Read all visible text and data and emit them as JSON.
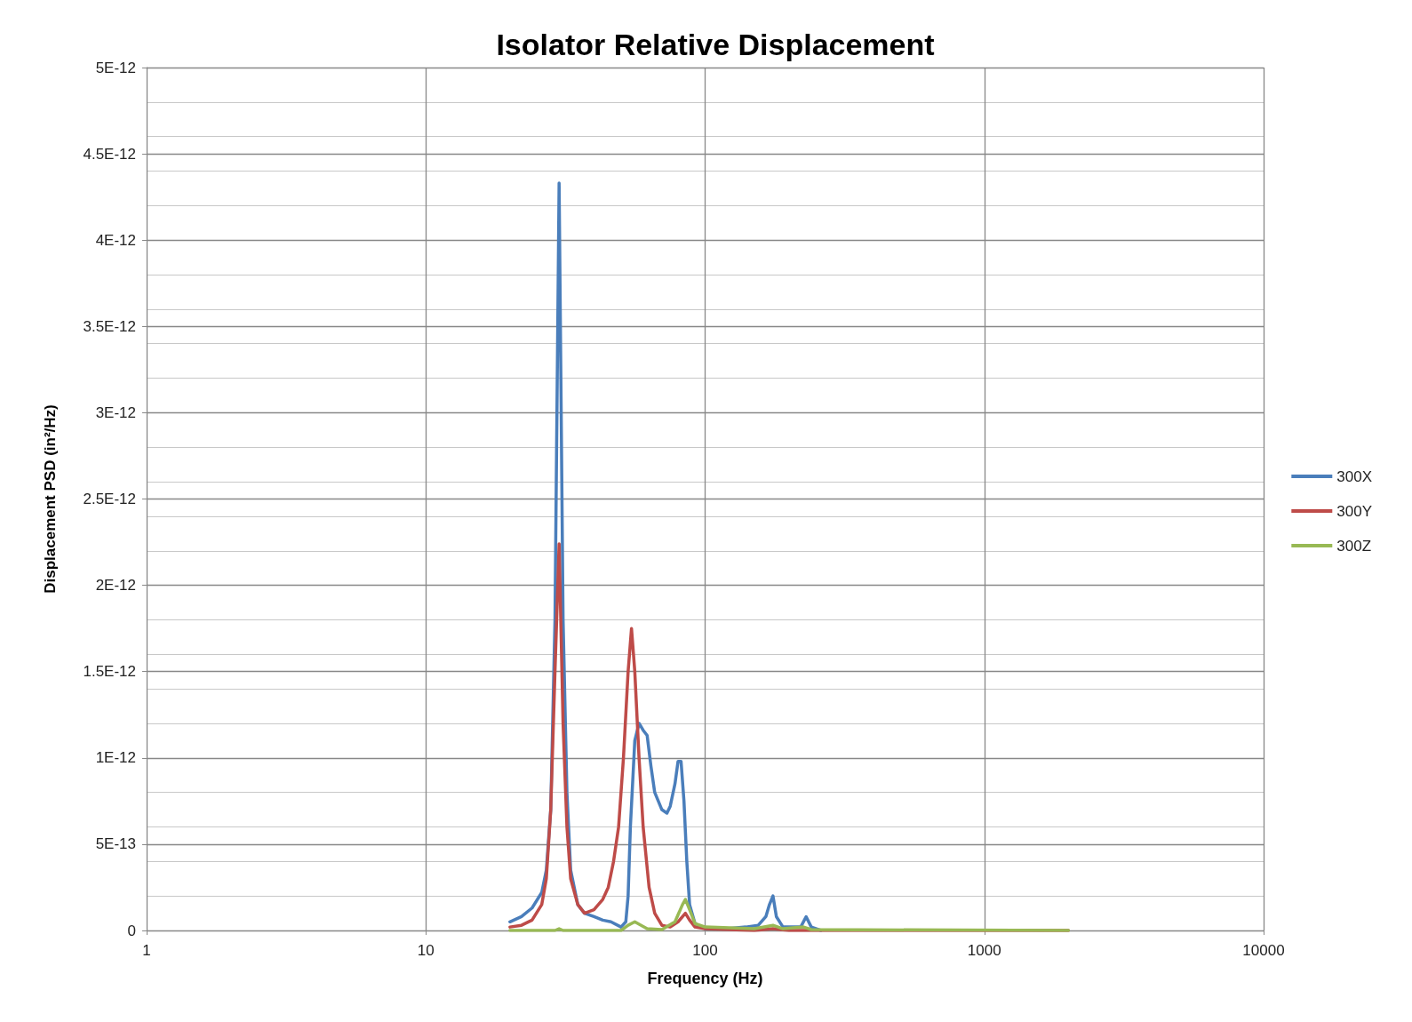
{
  "chart_data": {
    "type": "line",
    "title": "Isolator Relative Displacement",
    "xlabel": "Frequency (Hz)",
    "ylabel": "Displacement PSD (in²/Hz)",
    "log": "x",
    "grid": true,
    "legend": "right",
    "marker": "none",
    "line_style": "solid",
    "xlim": [
      1,
      10000
    ],
    "xticks": [
      1,
      10,
      100,
      1000,
      10000
    ],
    "ylim": [
      0,
      5e-12
    ],
    "yticks": [
      0,
      {
        "value": 5e-13,
        "label": "5E-13"
      },
      {
        "value": 1e-12,
        "label": "1E-12"
      },
      {
        "value": 1.5e-12,
        "label": "1.5E-12"
      },
      {
        "value": 2e-12,
        "label": "2E-12"
      },
      {
        "value": 2.5e-12,
        "label": "2.5E-12"
      },
      {
        "value": 3e-12,
        "label": "3E-12"
      },
      {
        "value": 3.5e-12,
        "label": "3.5E-12"
      },
      {
        "value": 4e-12,
        "label": "4E-12"
      },
      {
        "value": 4.5e-12,
        "label": "4.5E-12"
      },
      {
        "value": 5e-12,
        "label": "5E-12"
      }
    ],
    "series": [
      {
        "name": "300X",
        "color": "#4a7ebb",
        "x": [
          20,
          22,
          24,
          26,
          27,
          28,
          29,
          30,
          31,
          32,
          33,
          35,
          37,
          40,
          43,
          46,
          50,
          52,
          53,
          54,
          56,
          58,
          60,
          62,
          64,
          66,
          70,
          73,
          75,
          78,
          80,
          82,
          84,
          86,
          88,
          92,
          100,
          120,
          140,
          155,
          165,
          170,
          175,
          180,
          190,
          220,
          230,
          240,
          260
        ],
        "values": [
          5e-14,
          8e-14,
          1.3e-13,
          2.2e-13,
          3.5e-13,
          7e-13,
          1.8e-12,
          4.33e-12,
          1.8e-12,
          8e-13,
          3.5e-13,
          1.5e-13,
          1e-13,
          8e-14,
          6e-14,
          5e-14,
          2e-14,
          5e-14,
          2e-13,
          6e-13,
          1.1e-12,
          1.2e-12,
          1.16e-12,
          1.13e-12,
          9.5e-13,
          8e-13,
          7e-13,
          6.8e-13,
          7.2e-13,
          8.5e-13,
          9.8e-13,
          9.8e-13,
          7.5e-13,
          4e-13,
          1.5e-13,
          4e-14,
          1e-14,
          1e-14,
          2e-14,
          3e-14,
          8e-14,
          1.5e-13,
          2e-13,
          8e-14,
          2e-14,
          2e-14,
          8e-14,
          2e-14,
          0
        ]
      },
      {
        "name": "300Y",
        "color": "#be4b48",
        "x": [
          20,
          22,
          24,
          26,
          27,
          28,
          29,
          30,
          31,
          32,
          33,
          35,
          37,
          40,
          43,
          45,
          47,
          49,
          51,
          53,
          54.5,
          56,
          58,
          60,
          63,
          66,
          70,
          75,
          80,
          85,
          88,
          92,
          100,
          150,
          175,
          200,
          2000
        ],
        "values": [
          2e-14,
          3e-14,
          6e-14,
          1.5e-13,
          3e-13,
          7e-13,
          1.5e-12,
          2.24e-12,
          1.2e-12,
          6e-13,
          3e-13,
          1.5e-13,
          1e-13,
          1.2e-13,
          1.8e-13,
          2.5e-13,
          4e-13,
          6e-13,
          1e-12,
          1.5e-12,
          1.75e-12,
          1.5e-12,
          1e-12,
          6e-13,
          2.5e-13,
          1e-13,
          3e-14,
          2e-14,
          5e-14,
          1e-13,
          6e-14,
          2e-14,
          1e-14,
          0,
          1e-14,
          0,
          0
        ]
      },
      {
        "name": "300Z",
        "color": "#98b954",
        "x": [
          20,
          29,
          30,
          31,
          50,
          53,
          56,
          59,
          62,
          70,
          78,
          83,
          85,
          88,
          92,
          100,
          150,
          175,
          190,
          225,
          240,
          2000
        ],
        "values": [
          0,
          0,
          1e-14,
          0,
          0,
          3e-14,
          5e-14,
          3e-14,
          1e-14,
          5e-15,
          5e-14,
          1.5e-13,
          1.8e-13,
          1.2e-13,
          4e-14,
          2e-14,
          1e-14,
          3e-14,
          1e-14,
          2e-14,
          5e-15,
          0
        ]
      }
    ]
  }
}
